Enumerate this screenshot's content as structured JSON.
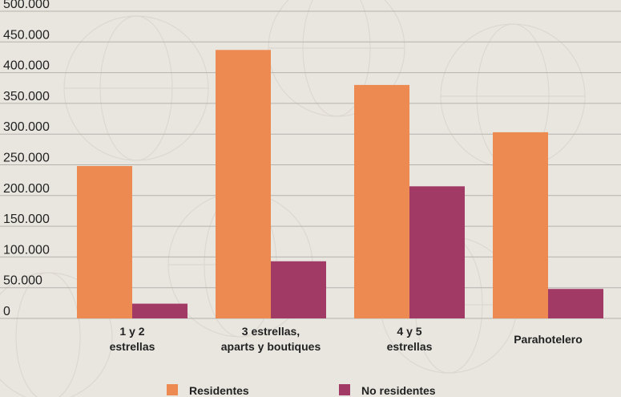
{
  "chart_data": {
    "type": "bar",
    "categories": [
      [
        "1 y 2",
        "estrellas"
      ],
      [
        "3 estrellas,",
        "aparts y boutiques"
      ],
      [
        "4 y 5",
        "estrellas"
      ],
      [
        "Parahotelero"
      ]
    ],
    "series": [
      {
        "name": "Residentes",
        "color": "#ec8a52",
        "values": [
          248000,
          437000,
          380000,
          303000
        ]
      },
      {
        "name": "No residentes",
        "color": "#a23a66",
        "values": [
          24000,
          93000,
          215000,
          48000
        ]
      }
    ],
    "ylim": [
      0,
      500000
    ],
    "yticks": [
      0,
      50000,
      100000,
      150000,
      200000,
      250000,
      300000,
      350000,
      400000,
      450000,
      500000
    ],
    "ytick_labels": [
      "0",
      "50.000",
      "100.000",
      "150.000",
      "200.000",
      "250.000",
      "300.000",
      "350.000",
      "400.000",
      "450.000",
      "500.000"
    ],
    "grid": true,
    "legend_position": "bottom"
  }
}
